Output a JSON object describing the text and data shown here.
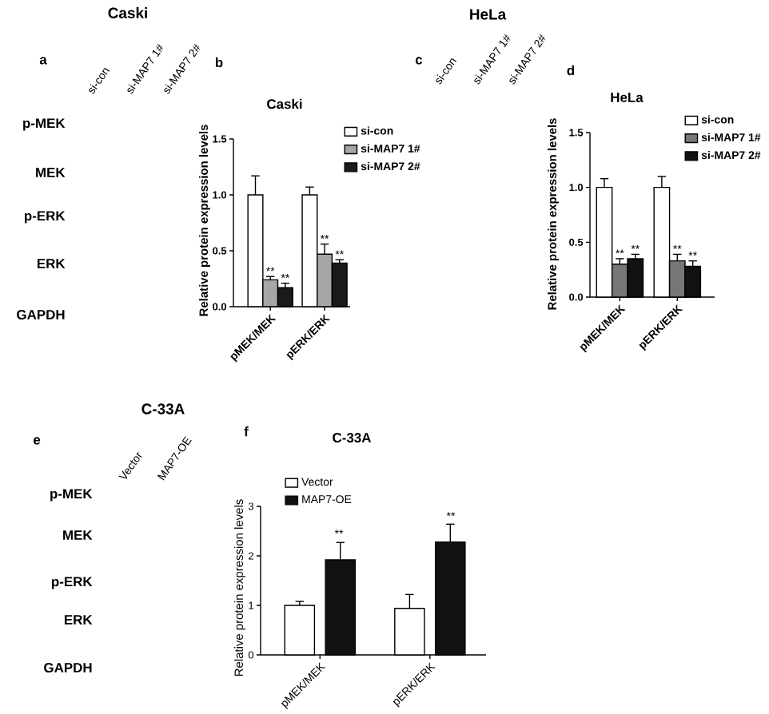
{
  "chart_data": [
    {
      "type": "other",
      "title": "Caski",
      "annotations": [
        "a"
      ],
      "categories": [
        "si-con",
        "si-MAP7 1#",
        "si-MAP7 2#"
      ],
      "y_categories": [
        "p-MEK",
        "MEK",
        "p-ERK",
        "ERK",
        "GAPDH"
      ]
    },
    {
      "type": "bar",
      "title": "Caski",
      "ylabel": "Relative protein expression levels",
      "categories": [
        "pMEK/MEK",
        "pERK/ERK"
      ],
      "series": [
        {
          "name": "si-con",
          "color": "#ffffff",
          "values": [
            1.0,
            1.0
          ],
          "errors": [
            [
              1.0,
              1.17
            ],
            [
              1.0,
              1.07
            ]
          ]
        },
        {
          "name": "si-MAP7 1#",
          "color": "#a6a6a6",
          "values": [
            0.24,
            0.47
          ],
          "errors": [
            [
              0.24,
              0.27
            ],
            [
              0.47,
              0.56
            ]
          ]
        },
        {
          "name": "si-MAP7 2#",
          "color": "#1a1a1a",
          "values": [
            0.17,
            0.39
          ],
          "errors": [
            [
              0.17,
              0.21
            ],
            [
              0.39,
              0.42
            ]
          ]
        }
      ],
      "ylim": [
        0,
        1.5
      ],
      "yticks": [
        {
          "value": 0,
          "label": "0.0"
        },
        {
          "value": 0.5,
          "label": "0.5"
        },
        {
          "value": 1.0,
          "label": "1.0"
        },
        {
          "value": 1.5,
          "label": "1.5"
        }
      ],
      "legend": "top right",
      "annotations": [
        "b",
        {
          "text": "**",
          "x": "pMEK/MEK",
          "y": 0.27
        },
        {
          "text": "**",
          "x": "pMEK/MEK",
          "y": 0.21
        },
        {
          "text": "**",
          "x": "pERK/ERK",
          "y": 0.56
        },
        {
          "text": "**",
          "x": "pERK/ERK",
          "y": 0.42
        }
      ]
    },
    {
      "type": "other",
      "title": "HeLa",
      "annotations": [
        "c"
      ],
      "categories": [
        "si-con",
        "si-MAP7 1#",
        "si-MAP7 2#"
      ]
    },
    {
      "type": "bar",
      "title": "HeLa",
      "ylabel": "Relative protein expression levels",
      "categories": [
        "pMEK/MEK",
        "pERK/ERK"
      ],
      "series": [
        {
          "name": "si-con",
          "color": "#ffffff",
          "values": [
            1.0,
            1.0
          ],
          "errors": [
            [
              1.0,
              1.08
            ],
            [
              1.0,
              1.1
            ]
          ]
        },
        {
          "name": "si-MAP7 1#",
          "color": "#777777",
          "values": [
            0.3,
            0.33
          ],
          "errors": [
            [
              0.3,
              0.35
            ],
            [
              0.33,
              0.39
            ]
          ]
        },
        {
          "name": "si-MAP7 2#",
          "color": "#111111",
          "values": [
            0.35,
            0.28
          ],
          "errors": [
            [
              0.35,
              0.39
            ],
            [
              0.28,
              0.33
            ]
          ]
        }
      ],
      "ylim": [
        0,
        1.5
      ],
      "yticks": [
        {
          "value": 0,
          "label": "0.0"
        },
        {
          "value": 0.5,
          "label": "0.5"
        },
        {
          "value": 1.0,
          "label": "1.0"
        },
        {
          "value": 1.5,
          "label": "1.5"
        }
      ],
      "legend": "top right",
      "annotations": [
        "d",
        {
          "text": "**",
          "x": "pMEK/MEK",
          "y": 0.35
        },
        {
          "text": "**",
          "x": "pMEK/MEK",
          "y": 0.39
        },
        {
          "text": "**",
          "x": "pERK/ERK",
          "y": 0.39
        },
        {
          "text": "**",
          "x": "pERK/ERK",
          "y": 0.33
        }
      ]
    },
    {
      "type": "other",
      "title": "C-33A",
      "annotations": [
        "e"
      ],
      "categories": [
        "Vector",
        "MAP7-OE"
      ],
      "y_categories": [
        "p-MEK",
        "MEK",
        "p-ERK",
        "ERK",
        "GAPDH"
      ]
    },
    {
      "type": "bar",
      "title": "C-33A",
      "ylabel": "Relative protein expression levels",
      "categories": [
        "pMEK/MEK",
        "pERK/ERK"
      ],
      "series": [
        {
          "name": "Vector",
          "color": "#ffffff",
          "values": [
            1.0,
            0.94
          ],
          "errors": [
            [
              1.0,
              1.08
            ],
            [
              0.94,
              1.22
            ]
          ]
        },
        {
          "name": "MAP7-OE",
          "color": "#111111",
          "values": [
            1.92,
            2.28
          ],
          "errors": [
            [
              1.92,
              2.27
            ],
            [
              2.28,
              2.64
            ]
          ]
        }
      ],
      "ylim": [
        0,
        3
      ],
      "yticks": [
        0,
        1,
        2,
        3
      ],
      "legend": "top left",
      "annotations": [
        "f",
        "**",
        "**"
      ]
    }
  ]
}
